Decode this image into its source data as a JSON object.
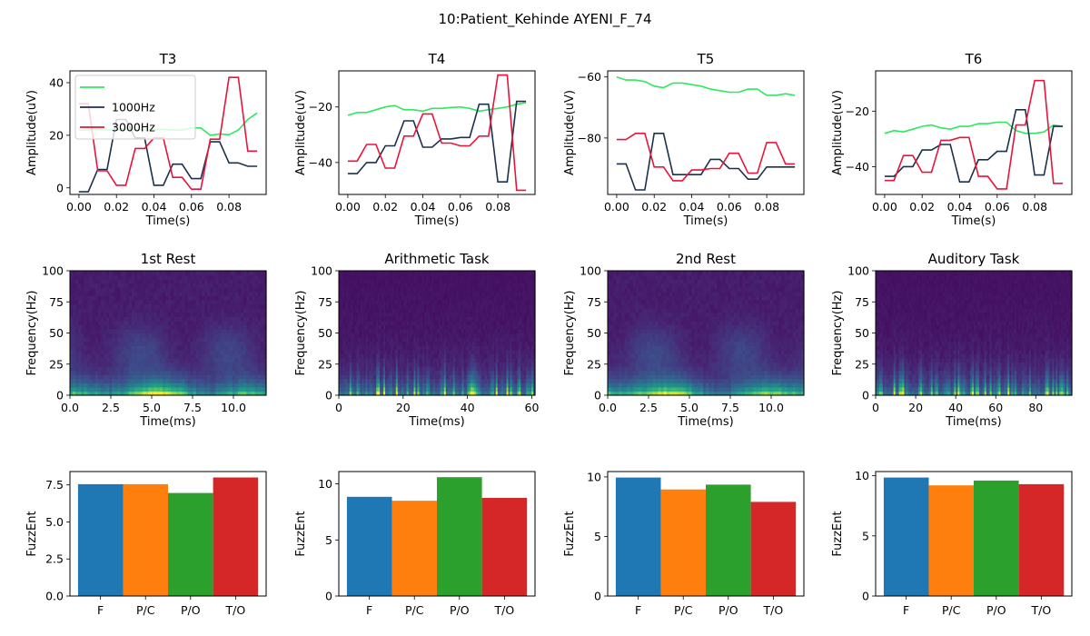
{
  "suptitle": "10:Patient_Kehinde AYENI_F_74",
  "colors": {
    "green": "#2fe860",
    "navy": "#1b304b",
    "red": "#e8143c",
    "bar_F": "#1f77b4",
    "bar_PC": "#ff7f0e",
    "bar_PO": "#2ca02c",
    "bar_TO": "#d62728"
  },
  "chart_data": [
    {
      "type": "line",
      "title": "T3",
      "xlabel": "Time(s)",
      "ylabel": "Amplitude(uV)",
      "xlim": [
        -0.0048,
        0.0998
      ],
      "ylim": [
        -2.5,
        44.5
      ],
      "xticks": [
        "0.00",
        "0.02",
        "0.04",
        "0.06",
        "0.08"
      ],
      "xtick_vals": [
        0,
        0.02,
        0.04,
        0.06,
        0.08
      ],
      "yticks": [
        "0",
        "20",
        "40"
      ],
      "ytick_vals": [
        0,
        20,
        40
      ],
      "legend": [
        "",
        "1000Hz",
        "3000Hz"
      ],
      "series": [
        {
          "name": "",
          "color": "green",
          "x": [
            0,
            0.005,
            0.01,
            0.015,
            0.02,
            0.025,
            0.03,
            0.035,
            0.04,
            0.045,
            0.05,
            0.055,
            0.06,
            0.065,
            0.07,
            0.075,
            0.08,
            0.085,
            0.09,
            0.095
          ],
          "y": [
            22,
            22,
            22.3,
            22,
            22,
            22.5,
            22,
            22,
            22,
            22.2,
            22,
            22,
            22.8,
            22.8,
            20,
            20.5,
            20.2,
            22,
            26,
            28.5
          ]
        },
        {
          "name": "1000Hz",
          "color": "navy",
          "x": [
            0,
            0.005,
            0.01,
            0.015,
            0.02,
            0.025,
            0.03,
            0.035,
            0.04,
            0.045,
            0.05,
            0.055,
            0.06,
            0.065,
            0.07,
            0.075,
            0.08,
            0.085,
            0.09,
            0.095
          ],
          "y": [
            -1.5,
            -1.5,
            7,
            7,
            26,
            26,
            19,
            19,
            1,
            1,
            9,
            9,
            3.5,
            3.5,
            17.5,
            17.5,
            9.5,
            9.5,
            8.2,
            8.2
          ]
        },
        {
          "name": "3000Hz",
          "color": "red",
          "x": [
            0,
            0.005,
            0.01,
            0.015,
            0.02,
            0.025,
            0.03,
            0.035,
            0.04,
            0.045,
            0.05,
            0.055,
            0.06,
            0.065,
            0.07,
            0.075,
            0.08,
            0.085,
            0.09,
            0.095
          ],
          "y": [
            32,
            32,
            6.5,
            6.5,
            1,
            1,
            15,
            15,
            19,
            19,
            4,
            4,
            -0.5,
            -0.5,
            18.5,
            18.5,
            42,
            42,
            14,
            14
          ]
        }
      ]
    },
    {
      "type": "line",
      "title": "T4",
      "xlabel": "Time(s)",
      "ylabel": "Amplitude(uV)",
      "xlim": [
        -0.0048,
        0.0998
      ],
      "ylim": [
        -51.5,
        -7
      ],
      "xticks": [
        "0.00",
        "0.02",
        "0.04",
        "0.06",
        "0.08"
      ],
      "xtick_vals": [
        0,
        0.02,
        0.04,
        0.06,
        0.08
      ],
      "yticks": [
        "−40",
        "−20"
      ],
      "ytick_vals": [
        -40,
        -20
      ],
      "series": [
        {
          "name": "",
          "color": "green",
          "x": [
            0,
            0.005,
            0.01,
            0.015,
            0.02,
            0.025,
            0.03,
            0.035,
            0.04,
            0.045,
            0.05,
            0.055,
            0.06,
            0.065,
            0.07,
            0.075,
            0.08,
            0.085,
            0.09,
            0.095
          ],
          "y": [
            -23,
            -22,
            -22,
            -21,
            -20,
            -19.5,
            -21,
            -21,
            -21.5,
            -20.5,
            -20.5,
            -20.2,
            -20,
            -20.5,
            -21.5,
            -21,
            -20.5,
            -20,
            -19,
            -18.5
          ]
        },
        {
          "name": "1000Hz",
          "color": "navy",
          "x": [
            0,
            0.005,
            0.01,
            0.015,
            0.02,
            0.025,
            0.03,
            0.035,
            0.04,
            0.045,
            0.05,
            0.055,
            0.06,
            0.065,
            0.07,
            0.075,
            0.08,
            0.085,
            0.09,
            0.095
          ],
          "y": [
            -44,
            -44,
            -40,
            -40,
            -34,
            -34,
            -25,
            -25,
            -34.5,
            -34.5,
            -31.5,
            -31.5,
            -31,
            -31,
            -19,
            -19,
            -47,
            -47,
            -18,
            -18
          ]
        },
        {
          "name": "3000Hz",
          "color": "red",
          "x": [
            0,
            0.005,
            0.01,
            0.015,
            0.02,
            0.025,
            0.03,
            0.035,
            0.04,
            0.045,
            0.05,
            0.055,
            0.06,
            0.065,
            0.07,
            0.075,
            0.08,
            0.085,
            0.09,
            0.095
          ],
          "y": [
            -39.5,
            -39.5,
            -33.5,
            -33.5,
            -42,
            -42,
            -30.5,
            -30.5,
            -22.5,
            -22.5,
            -33,
            -33,
            -34,
            -34,
            -30.5,
            -30.5,
            -8.5,
            -8.5,
            -50,
            -50
          ]
        }
      ]
    },
    {
      "type": "line",
      "title": "T5",
      "xlabel": "Time(s)",
      "ylabel": "Amplitude(uV)",
      "xlim": [
        -0.0048,
        0.0998
      ],
      "ylim": [
        -98.5,
        -58
      ],
      "xticks": [
        "0.00",
        "0.02",
        "0.04",
        "0.06",
        "0.08"
      ],
      "xtick_vals": [
        0,
        0.02,
        0.04,
        0.06,
        0.08
      ],
      "yticks": [
        "−80",
        "−60"
      ],
      "ytick_vals": [
        -80,
        -60
      ],
      "series": [
        {
          "name": "",
          "color": "green",
          "x": [
            0,
            0.005,
            0.01,
            0.015,
            0.02,
            0.025,
            0.03,
            0.035,
            0.04,
            0.045,
            0.05,
            0.055,
            0.06,
            0.065,
            0.07,
            0.075,
            0.08,
            0.085,
            0.09,
            0.095
          ],
          "y": [
            -60,
            -61,
            -61,
            -61.5,
            -63,
            -63.5,
            -62,
            -62,
            -62.5,
            -63,
            -64,
            -64.5,
            -65,
            -65,
            -64,
            -64,
            -66,
            -66,
            -65.5,
            -66
          ]
        },
        {
          "name": "1000Hz",
          "color": "navy",
          "x": [
            0,
            0.005,
            0.01,
            0.015,
            0.02,
            0.025,
            0.03,
            0.035,
            0.04,
            0.045,
            0.05,
            0.055,
            0.06,
            0.065,
            0.07,
            0.075,
            0.08,
            0.085,
            0.09,
            0.095
          ],
          "y": [
            -88.5,
            -88.5,
            -97,
            -97,
            -78.5,
            -78.5,
            -92,
            -92,
            -92,
            -92,
            -87,
            -87,
            -90,
            -90,
            -93.5,
            -93.5,
            -89.5,
            -89.5,
            -89.5,
            -89.5
          ]
        },
        {
          "name": "3000Hz",
          "color": "red",
          "x": [
            0,
            0.005,
            0.01,
            0.015,
            0.02,
            0.025,
            0.03,
            0.035,
            0.04,
            0.045,
            0.05,
            0.055,
            0.06,
            0.065,
            0.07,
            0.075,
            0.08,
            0.085,
            0.09,
            0.095
          ],
          "y": [
            -80.5,
            -80.5,
            -78.5,
            -78.5,
            -89.5,
            -89.5,
            -94,
            -94,
            -90.5,
            -90.5,
            -90,
            -90,
            -85,
            -85,
            -91.5,
            -91.5,
            -81.5,
            -81.5,
            -88.5,
            -88.5
          ]
        }
      ]
    },
    {
      "type": "line",
      "title": "T6",
      "xlabel": "Time(s)",
      "ylabel": "Amplitude(uV)",
      "xlim": [
        -0.0048,
        0.0998
      ],
      "ylim": [
        -50,
        -5.5
      ],
      "xticks": [
        "0.00",
        "0.02",
        "0.04",
        "0.06",
        "0.08"
      ],
      "xtick_vals": [
        0,
        0.02,
        0.04,
        0.06,
        0.08
      ],
      "yticks": [
        "−40",
        "−20"
      ],
      "ytick_vals": [
        -40,
        -20
      ],
      "series": [
        {
          "name": "",
          "color": "green",
          "x": [
            0,
            0.005,
            0.01,
            0.015,
            0.02,
            0.025,
            0.03,
            0.035,
            0.04,
            0.045,
            0.05,
            0.055,
            0.06,
            0.065,
            0.07,
            0.075,
            0.08,
            0.085,
            0.09,
            0.095
          ],
          "y": [
            -28,
            -27,
            -27.5,
            -26.5,
            -25.5,
            -25,
            -26,
            -26.5,
            -25.5,
            -25.5,
            -24.5,
            -24.5,
            -24,
            -24,
            -27,
            -28,
            -28,
            -27.5,
            -25,
            -25.5
          ]
        },
        {
          "name": "1000Hz",
          "color": "navy",
          "x": [
            0,
            0.005,
            0.01,
            0.015,
            0.02,
            0.025,
            0.03,
            0.035,
            0.04,
            0.045,
            0.05,
            0.055,
            0.06,
            0.065,
            0.07,
            0.075,
            0.08,
            0.085,
            0.09,
            0.095
          ],
          "y": [
            -43.5,
            -43.5,
            -40,
            -40,
            -34,
            -34,
            -32,
            -32,
            -45.5,
            -45.5,
            -37.5,
            -37.5,
            -34.5,
            -34.5,
            -19.5,
            -19.5,
            -43,
            -43,
            -25.5,
            -25.5
          ]
        },
        {
          "name": "3000Hz",
          "color": "red",
          "x": [
            0,
            0.005,
            0.01,
            0.015,
            0.02,
            0.025,
            0.03,
            0.035,
            0.04,
            0.045,
            0.05,
            0.055,
            0.06,
            0.065,
            0.07,
            0.075,
            0.08,
            0.085,
            0.09,
            0.095
          ],
          "y": [
            -45,
            -45,
            -36,
            -36,
            -42,
            -42,
            -30.5,
            -30.5,
            -29.5,
            -29.5,
            -43.5,
            -43.5,
            -48,
            -48,
            -25,
            -25,
            -9,
            -9,
            -46,
            -46
          ]
        }
      ]
    },
    {
      "type": "heatmap",
      "title": "1st Rest",
      "xlabel": "Time(ms)",
      "ylabel": "Frequency(Hz)",
      "xlim": [
        0,
        12
      ],
      "ylim": [
        0,
        100
      ],
      "xticks": [
        "0.0",
        "2.5",
        "5.0",
        "7.5",
        "10.0"
      ],
      "xtick_vals": [
        0,
        2.5,
        5,
        7.5,
        10
      ],
      "yticks": [
        "0",
        "25",
        "50",
        "75",
        "100"
      ],
      "ytick_vals": [
        0,
        25,
        50,
        75,
        100
      ],
      "pattern": "rest",
      "seed": 3
    },
    {
      "type": "heatmap",
      "title": "Arithmetic Task",
      "xlabel": "Time(ms)",
      "ylabel": "Frequency(Hz)",
      "xlim": [
        0,
        61
      ],
      "ylim": [
        0,
        100
      ],
      "xticks": [
        "0",
        "20",
        "40",
        "60"
      ],
      "xtick_vals": [
        0,
        20,
        40,
        60
      ],
      "yticks": [
        "0",
        "25",
        "50",
        "75",
        "100"
      ],
      "ytick_vals": [
        0,
        25,
        50,
        75,
        100
      ],
      "pattern": "task",
      "seed": 7
    },
    {
      "type": "heatmap",
      "title": "2nd Rest",
      "xlabel": "Time(ms)",
      "ylabel": "Frequency(Hz)",
      "xlim": [
        0,
        12
      ],
      "ylim": [
        0,
        100
      ],
      "xticks": [
        "0.0",
        "2.5",
        "5.0",
        "7.5",
        "10.0"
      ],
      "xtick_vals": [
        0,
        2.5,
        5,
        7.5,
        10
      ],
      "yticks": [
        "0",
        "25",
        "50",
        "75",
        "100"
      ],
      "ytick_vals": [
        0,
        25,
        50,
        75,
        100
      ],
      "pattern": "rest",
      "seed": 11
    },
    {
      "type": "heatmap",
      "title": "Auditory Task",
      "xlabel": "Time(ms)",
      "ylabel": "Frequency(Hz)",
      "xlim": [
        0,
        98
      ],
      "ylim": [
        0,
        100
      ],
      "xticks": [
        "0",
        "20",
        "40",
        "60",
        "80"
      ],
      "xtick_vals": [
        0,
        20,
        40,
        60,
        80
      ],
      "yticks": [
        "0",
        "25",
        "50",
        "75",
        "100"
      ],
      "ytick_vals": [
        0,
        25,
        50,
        75,
        100
      ],
      "pattern": "task",
      "seed": 19
    },
    {
      "type": "bar",
      "title": "",
      "xlabel": "",
      "ylabel": "FuzzEnt",
      "categories": [
        "F",
        "P/C",
        "P/O",
        "T/O"
      ],
      "values": [
        7.55,
        7.55,
        6.95,
        8.0
      ],
      "bar_colors": [
        "bar_F",
        "bar_PC",
        "bar_PO",
        "bar_TO"
      ],
      "ylim": [
        0,
        8.4
      ],
      "yticks": [
        "0.0",
        "2.5",
        "5.0",
        "7.5"
      ],
      "ytick_vals": [
        0,
        2.5,
        5,
        7.5
      ]
    },
    {
      "type": "bar",
      "title": "",
      "xlabel": "",
      "ylabel": "FuzzEnt",
      "categories": [
        "F",
        "P/C",
        "P/O",
        "T/O"
      ],
      "values": [
        8.85,
        8.5,
        10.6,
        8.75
      ],
      "bar_colors": [
        "bar_F",
        "bar_PC",
        "bar_PO",
        "bar_TO"
      ],
      "ylim": [
        0,
        11.1
      ],
      "yticks": [
        "0",
        "5",
        "10"
      ],
      "ytick_vals": [
        0,
        5,
        10
      ]
    },
    {
      "type": "bar",
      "title": "",
      "xlabel": "",
      "ylabel": "FuzzEnt",
      "categories": [
        "F",
        "P/C",
        "P/O",
        "T/O"
      ],
      "values": [
        9.95,
        8.95,
        9.35,
        7.9
      ],
      "bar_colors": [
        "bar_F",
        "bar_PC",
        "bar_PO",
        "bar_TO"
      ],
      "ylim": [
        0,
        10.45
      ],
      "yticks": [
        "0",
        "5",
        "10"
      ],
      "ytick_vals": [
        0,
        5,
        10
      ]
    },
    {
      "type": "bar",
      "title": "",
      "xlabel": "",
      "ylabel": "FuzzEnt",
      "categories": [
        "F",
        "P/C",
        "P/O",
        "T/O"
      ],
      "values": [
        9.85,
        9.2,
        9.6,
        9.3
      ],
      "bar_colors": [
        "bar_F",
        "bar_PC",
        "bar_PO",
        "bar_TO"
      ],
      "ylim": [
        0,
        10.35
      ],
      "yticks": [
        "0",
        "5",
        "10"
      ],
      "ytick_vals": [
        0,
        5,
        10
      ]
    }
  ]
}
